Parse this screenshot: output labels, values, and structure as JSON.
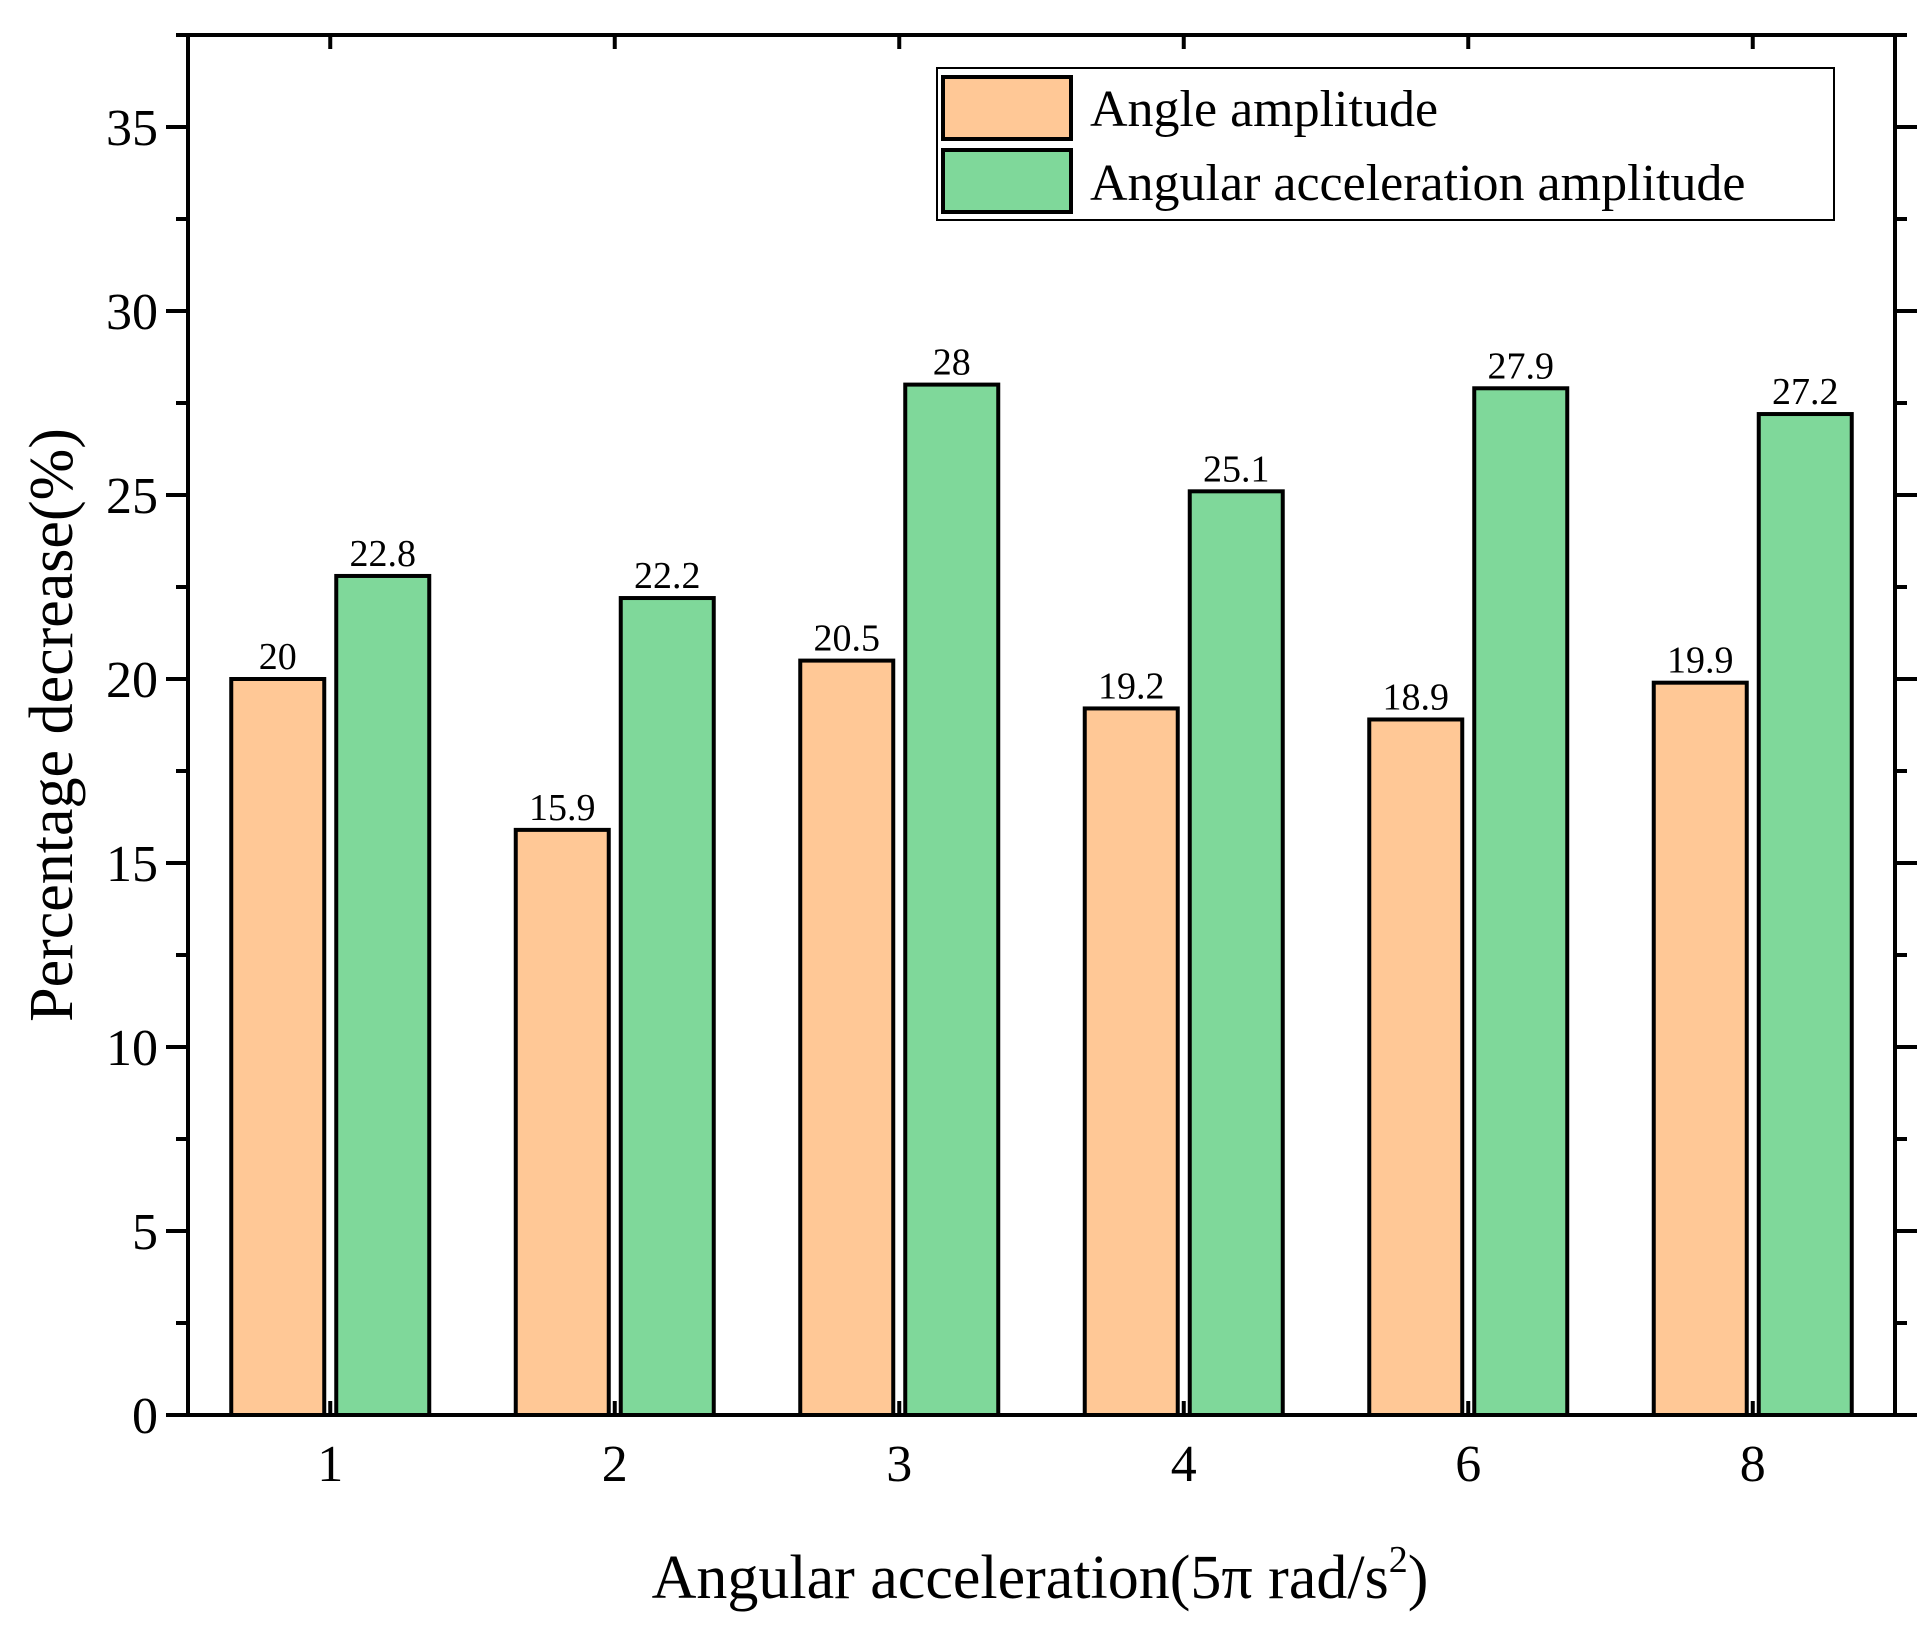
{
  "chart_data": {
    "type": "bar",
    "title": "",
    "xlabel": "Angular acceleration(5π rad/s",
    "xlabel_superscript": "2",
    "xlabel_suffix": ")",
    "ylabel": "Percentage decrease(%)",
    "categories": [
      "1",
      "2",
      "3",
      "4",
      "6",
      "8"
    ],
    "series": [
      {
        "name": "Angle amplitude",
        "color": "#FFC896",
        "values": [
          20,
          15.9,
          20.5,
          19.2,
          18.9,
          19.9
        ],
        "labels": [
          "20",
          "15.9",
          "20.5",
          "19.2",
          "18.9",
          "19.9"
        ]
      },
      {
        "name": "Angular acceleration amplitude",
        "color": "#7FD89A",
        "values": [
          22.8,
          22.2,
          28,
          25.1,
          27.9,
          27.2
        ],
        "labels": [
          "22.8",
          "22.2",
          "28",
          "25.1",
          "27.9",
          "27.2"
        ]
      }
    ],
    "ylim": [
      0,
      37.5
    ],
    "yticks": [
      0,
      5,
      10,
      15,
      20,
      25,
      30,
      35
    ],
    "ytick_labels": [
      "0",
      "5",
      "10",
      "15",
      "20",
      "25",
      "30",
      "35"
    ],
    "grid": false,
    "legend_position": "top-right"
  }
}
